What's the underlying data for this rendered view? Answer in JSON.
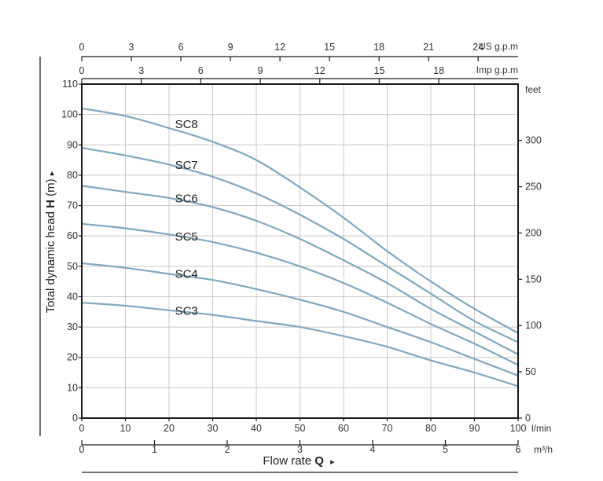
{
  "chart_data": {
    "type": "line",
    "xlabel": "Flow rate",
    "xlabel_symbol": "Q",
    "ylabel": "Total dynamic head",
    "ylabel_symbol": "H",
    "ylabel_unit": "(m)",
    "arrow_glyph": "▸",
    "xlim": [
      0,
      100
    ],
    "ylim": [
      0,
      110
    ],
    "grid": true,
    "colors": {
      "curve": "#7fa8bf",
      "grid": "#c8c8c8",
      "frame": "#1a1a1a"
    },
    "axes": {
      "bottom_lmin": {
        "unit": "l/min",
        "ticks": [
          0,
          10,
          20,
          30,
          40,
          50,
          60,
          70,
          80,
          90,
          100
        ]
      },
      "bottom_m3h": {
        "unit": "m³/h",
        "ticks": [
          0,
          1,
          2,
          3,
          4,
          5,
          6
        ]
      },
      "top_usgpm": {
        "unit": "US g.p.m",
        "ticks": [
          0,
          3,
          6,
          9,
          12,
          15,
          18,
          21,
          24
        ]
      },
      "top_impgpm": {
        "unit": "Imp g.p.m",
        "ticks": [
          0,
          3,
          6,
          9,
          12,
          15,
          18
        ]
      },
      "left_m": {
        "ticks": [
          0,
          10,
          20,
          30,
          40,
          50,
          60,
          70,
          80,
          90,
          100,
          110
        ]
      },
      "right_feet": {
        "unit": "feet",
        "ticks": [
          0,
          50,
          100,
          150,
          200,
          250,
          300
        ]
      }
    },
    "series": [
      {
        "name": "SC8",
        "x": [
          0,
          10,
          20,
          30,
          40,
          50,
          60,
          70,
          80,
          90,
          100
        ],
        "values": [
          102,
          99.5,
          95.5,
          91,
          85,
          76,
          66,
          55,
          45,
          36,
          28
        ]
      },
      {
        "name": "SC7",
        "x": [
          0,
          10,
          20,
          30,
          40,
          50,
          60,
          70,
          80,
          90,
          100
        ],
        "values": [
          89,
          86.5,
          83.5,
          79.5,
          74,
          67,
          59,
          50,
          41,
          32,
          25
        ]
      },
      {
        "name": "SC6",
        "x": [
          0,
          10,
          20,
          30,
          40,
          50,
          60,
          70,
          80,
          90,
          100
        ],
        "values": [
          76.5,
          74.5,
          72.5,
          69.5,
          65,
          59,
          52,
          44.5,
          36,
          28.5,
          21
        ]
      },
      {
        "name": "SC5",
        "x": [
          0,
          10,
          20,
          30,
          40,
          50,
          60,
          70,
          80,
          90,
          100
        ],
        "values": [
          64,
          62.5,
          60.5,
          58,
          54.5,
          50,
          44.5,
          38,
          31,
          24.5,
          17.5
        ]
      },
      {
        "name": "SC4",
        "x": [
          0,
          10,
          20,
          30,
          40,
          50,
          60,
          70,
          80,
          90,
          100
        ],
        "values": [
          51,
          49.5,
          47.5,
          45.5,
          42.5,
          39,
          35,
          30,
          25,
          19.5,
          14
        ]
      },
      {
        "name": "SC3",
        "x": [
          0,
          10,
          20,
          30,
          40,
          50,
          60,
          70,
          80,
          90,
          100
        ],
        "values": [
          38,
          37,
          35.5,
          34,
          32,
          30,
          27,
          23.5,
          19,
          15,
          10.5
        ]
      }
    ]
  }
}
